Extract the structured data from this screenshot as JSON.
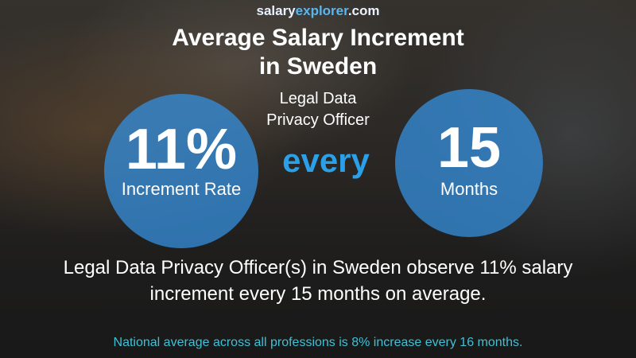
{
  "logo": {
    "part1": "salary",
    "part2": "explorer",
    "part3": ".com"
  },
  "header": {
    "title_line1": "Average Salary Increment",
    "title_line2": "in Sweden",
    "subtitle_line1": "Legal Data",
    "subtitle_line2": "Privacy Officer"
  },
  "left_circle": {
    "value": "11%",
    "label": "Increment Rate"
  },
  "middle": "every",
  "right_circle": {
    "value": "15",
    "label": "Months"
  },
  "summary": {
    "line1": "Legal Data Privacy Officer(s) in Sweden observe 11% salary",
    "line2": "increment every 15 months on average."
  },
  "footer": "National average across all professions is 8% increase every 16 months."
}
